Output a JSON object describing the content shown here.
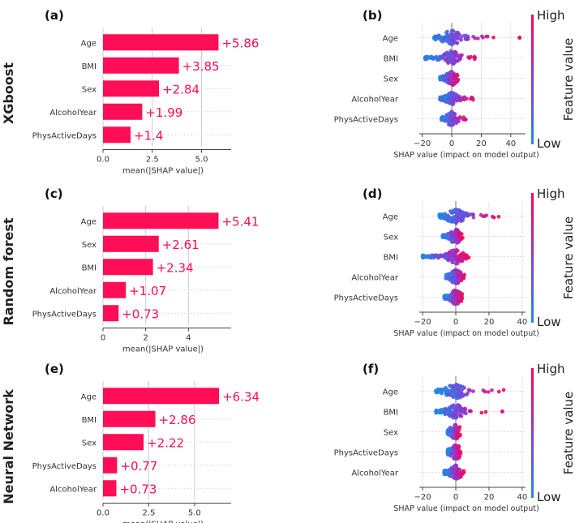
{
  "colors": {
    "bar": "#ff0d57",
    "high": "#ff0052",
    "low": "#1e88e5",
    "grid": "#cccccc",
    "text": "#333333",
    "axis": "#444444"
  },
  "rows": [
    {
      "model_label": "XGboost"
    },
    {
      "model_label": "Random forest"
    },
    {
      "model_label": "Neural Network"
    }
  ],
  "chart_data": [
    {
      "panel": "(a)",
      "type": "bar",
      "orientation": "horizontal",
      "categories": [
        "Age",
        "BMI",
        "Sex",
        "AlcoholYear",
        "PhysActiveDays"
      ],
      "values": [
        5.86,
        3.85,
        2.84,
        1.99,
        1.4
      ],
      "value_labels": [
        "+5.86",
        "+3.85",
        "+2.84",
        "+1.99",
        "+1.4"
      ],
      "xlabel": "mean(|SHAP value|)",
      "xticks": [
        0,
        2.5,
        5
      ],
      "xtick_labels": [
        "0.0",
        "2.5",
        "5.0"
      ],
      "xlim": [
        0,
        6.5
      ]
    },
    {
      "panel": "(b)",
      "type": "scatter",
      "subtype": "beeswarm",
      "features": [
        "Age",
        "BMI",
        "Sex",
        "AlcoholYear",
        "PhysActiveDays"
      ],
      "ranges": [
        [
          -12,
          30
        ],
        [
          -18,
          18
        ],
        [
          -8,
          5
        ],
        [
          -8,
          15
        ],
        [
          -7,
          10
        ]
      ],
      "outliers": [
        [
          46,
          0.9
        ],
        [
          null,
          null
        ],
        [
          null,
          null
        ],
        [
          null,
          null
        ],
        [
          null,
          null
        ]
      ],
      "xlabel": "SHAP value (impact on model output)",
      "xticks": [
        -20,
        0,
        20,
        40
      ],
      "xtick_labels": [
        "−20",
        "0",
        "20",
        "40"
      ],
      "xlim": [
        -22,
        50
      ],
      "colorbar": {
        "label": "Feature value",
        "high": "High",
        "low": "Low"
      }
    },
    {
      "panel": "(c)",
      "type": "bar",
      "orientation": "horizontal",
      "categories": [
        "Age",
        "Sex",
        "BMI",
        "AlcoholYear",
        "PhysActiveDays"
      ],
      "values": [
        5.41,
        2.61,
        2.34,
        1.07,
        0.73
      ],
      "value_labels": [
        "+5.41",
        "+2.61",
        "+2.34",
        "+1.07",
        "+0.73"
      ],
      "xlabel": "mean(|SHAP value|)",
      "xticks": [
        0,
        2,
        4
      ],
      "xtick_labels": [
        "0",
        "2",
        "4"
      ],
      "xlim": [
        0,
        6
      ]
    },
    {
      "panel": "(d)",
      "type": "scatter",
      "subtype": "beeswarm",
      "features": [
        "Age",
        "Sex",
        "BMI",
        "AlcoholYear",
        "PhysActiveDays"
      ],
      "ranges": [
        [
          -10,
          28
        ],
        [
          -8,
          5
        ],
        [
          -20,
          10
        ],
        [
          -6,
          6
        ],
        [
          -7,
          4
        ]
      ],
      "outliers": [
        [
          null,
          null
        ],
        [
          null,
          null
        ],
        [
          null,
          null
        ],
        [
          null,
          null
        ],
        [
          null,
          null
        ]
      ],
      "xlabel": "SHAP value (impact on model output)",
      "xticks": [
        -20,
        0,
        20,
        40
      ],
      "xtick_labels": [
        "−20",
        "0",
        "20",
        "40"
      ],
      "xlim": [
        -22,
        42
      ],
      "colorbar": {
        "label": "Feature value",
        "high": "High",
        "low": "Low"
      }
    },
    {
      "panel": "(e)",
      "type": "bar",
      "orientation": "horizontal",
      "categories": [
        "Age",
        "BMI",
        "Sex",
        "PhysActiveDays",
        "AlcoholYear"
      ],
      "values": [
        6.34,
        2.86,
        2.22,
        0.77,
        0.73
      ],
      "value_labels": [
        "+6.34",
        "+2.86",
        "+2.22",
        "+0.77",
        "+0.73"
      ],
      "xlabel": "mean(|SHAP value|)",
      "xticks": [
        0,
        2.5,
        5
      ],
      "xtick_labels": [
        "0.0",
        "2.5",
        "5.0"
      ],
      "xlim": [
        0,
        7
      ]
    },
    {
      "panel": "(f)",
      "type": "scatter",
      "subtype": "beeswarm",
      "features": [
        "Age",
        "BMI",
        "Sex",
        "PhysActiveDays",
        "AlcoholYear"
      ],
      "ranges": [
        [
          -12,
          30
        ],
        [
          -12,
          20
        ],
        [
          -5,
          3
        ],
        [
          -5,
          3
        ],
        [
          -7,
          5
        ]
      ],
      "outliers": [
        [
          null,
          null
        ],
        [
          28,
          0.8
        ],
        [
          null,
          null
        ],
        [
          null,
          null
        ],
        [
          null,
          null
        ]
      ],
      "xlabel": "SHAP value (impact on model output)",
      "xticks": [
        -20,
        0,
        20,
        40
      ],
      "xtick_labels": [
        "−20",
        "0",
        "20",
        "40"
      ],
      "xlim": [
        -22,
        42
      ],
      "colorbar": {
        "label": "Feature value",
        "high": "High",
        "low": "Low"
      }
    }
  ]
}
